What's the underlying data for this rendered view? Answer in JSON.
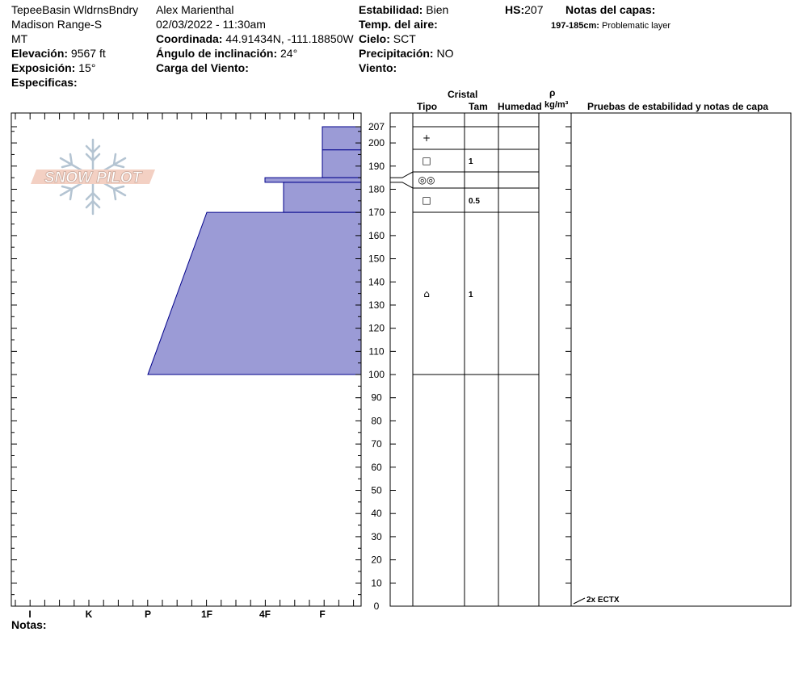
{
  "header": {
    "location": "TepeeBasin WldrnsBndry",
    "range": "Madison Range-S",
    "state": "MT",
    "elevation_label": "Elevación:",
    "elevation_value": "9567 ft",
    "aspect_label": "Exposición:",
    "aspect_value": "15°",
    "specifics_label": "Especificas:",
    "observer": "Alex Marienthal",
    "datetime": "02/03/2022 - 11:30am",
    "coord_label": "Coordinada:",
    "coord_value": "44.91434N, -111.18850W",
    "slope_label": "Ángulo de inclinación:",
    "slope_value": "24°",
    "wind_load_label": "Carga del Viento:",
    "stability_label": "Estabilidad:",
    "stability_value": "Bien",
    "air_temp_label": "Temp. del aire:",
    "sky_label": "Cielo:",
    "sky_value": "SCT",
    "precip_label": "Precipitación:",
    "precip_value": "NO",
    "wind_label": "Viento:",
    "hs_label": "HS:",
    "hs_value": "207",
    "layer_notes_label": "Notas del capas:",
    "layer_note_range": "197-185cm:",
    "layer_note_text": "Problematic layer",
    "notes_label": "Notas:"
  },
  "logo": {
    "text": "SNOW PILOT"
  },
  "table_headers": {
    "crystal": "Cristal",
    "type": "Tipo",
    "size": "Tam",
    "moisture": "Humedad",
    "rho": "ρ",
    "density_unit": "kg/m³",
    "tests": "Pruebas de estabilidad y notas de capa"
  },
  "colors": {
    "hardness_fill": "#9b9bd6",
    "hardness_stroke": "#00008b"
  },
  "chart_data": {
    "type": "area",
    "title": "",
    "x_axis": {
      "label": "",
      "categories": [
        "I",
        "K",
        "P",
        "1F",
        "4F",
        "F"
      ]
    },
    "y_axis": {
      "label": "",
      "range": [
        0,
        207
      ],
      "ticks": [
        0,
        10,
        20,
        30,
        40,
        50,
        60,
        70,
        80,
        90,
        100,
        110,
        120,
        130,
        140,
        150,
        160,
        170,
        180,
        190,
        200,
        207
      ]
    },
    "hardness_profile": [
      {
        "top": 207,
        "bottom": 197,
        "hardness": "F"
      },
      {
        "top": 197,
        "bottom": 185,
        "hardness": "F"
      },
      {
        "top": 185,
        "bottom": 183,
        "hardness": "4F"
      },
      {
        "top": 183,
        "bottom": 170,
        "hardness": "4F-"
      },
      {
        "top": 170,
        "bottom": 100,
        "hardness": "1F",
        "hardness_bottom": "P"
      }
    ],
    "layer_boundaries": [
      207,
      197,
      185,
      178,
      170,
      100
    ],
    "layers": [
      {
        "top": 207,
        "bottom": 197,
        "crystal_type": "+",
        "crystal_size": ""
      },
      {
        "top": 197,
        "bottom": 185,
        "crystal_type": "□",
        "crystal_size": "1"
      },
      {
        "top": 185,
        "bottom": 178,
        "crystal_type": "◎◎",
        "crystal_size": ""
      },
      {
        "top": 178,
        "bottom": 170,
        "crystal_type": "□",
        "crystal_size": "0.5"
      },
      {
        "top": 170,
        "bottom": 100,
        "crystal_type": "⌂",
        "crystal_size": "1"
      }
    ],
    "stability_tests": [
      {
        "height": 0,
        "text": "2x ECTX"
      }
    ]
  }
}
